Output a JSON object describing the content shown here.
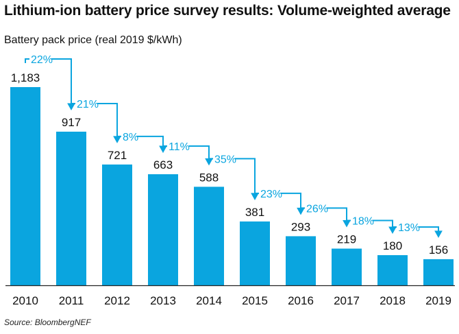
{
  "title": "Lithium-ion battery price survey results: Volume-weighted average",
  "subtitle": "Battery pack price (real 2019 $/kWh)",
  "source": "Source: BloombergNEF",
  "colors": {
    "bar": "#0aa5df",
    "arrow": "#0aa5df",
    "axis": "#222222",
    "text": "#111111"
  },
  "chart_data": {
    "type": "bar",
    "title": "Lithium-ion battery price survey results: Volume-weighted average",
    "ylabel": "Battery pack price (real 2019 $/kWh)",
    "xlabel": "",
    "categories": [
      "2010",
      "2011",
      "2012",
      "2013",
      "2014",
      "2015",
      "2016",
      "2017",
      "2018",
      "2019"
    ],
    "values": [
      1183,
      917,
      721,
      663,
      588,
      381,
      293,
      219,
      180,
      156
    ],
    "value_labels": [
      "1,183",
      "917",
      "721",
      "663",
      "588",
      "381",
      "293",
      "219",
      "180",
      "156"
    ],
    "annotations": [
      "22%",
      "21%",
      "8%",
      "11%",
      "35%",
      "23%",
      "26%",
      "18%",
      "13%"
    ],
    "ylim": [
      0,
      1183
    ],
    "grid": false,
    "legend": "none"
  }
}
